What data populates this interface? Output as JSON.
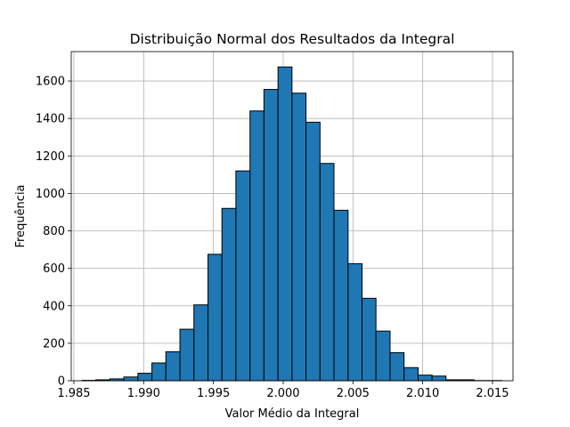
{
  "chart_data": {
    "type": "histogram",
    "title": "Distribuição Normal dos Resultados da Integral",
    "x_label": "Valor Médio da Integral",
    "y_label": "Frequência",
    "bins": [
      1.98557,
      1.98657,
      1.98758,
      1.98858,
      1.98959,
      1.99059,
      1.99159,
      1.9926,
      1.9936,
      1.99461,
      1.99561,
      1.99661,
      1.99762,
      1.99862,
      1.99963,
      2.00063,
      2.00163,
      2.00264,
      2.00364,
      2.00465,
      2.00565,
      2.00665,
      2.00766,
      2.00866,
      2.00967,
      2.01067,
      2.01167,
      2.01268,
      2.01368,
      2.01469,
      2.01569
    ],
    "values": [
      2,
      5,
      10,
      20,
      40,
      95,
      155,
      275,
      405,
      675,
      920,
      1120,
      1440,
      1555,
      1675,
      1535,
      1380,
      1160,
      910,
      625,
      440,
      265,
      150,
      70,
      30,
      25,
      5,
      5,
      1,
      1
    ],
    "color": "#1f77b4",
    "edgecolor": "#000000",
    "xlim": [
      1.98481,
      2.01647
    ],
    "xticks": [
      1.985,
      {
        "value": 1.99,
        "label": "1.990"
      },
      1.995,
      {
        "value": 2,
        "label": "2.000"
      },
      2.005,
      {
        "value": 2.01,
        "label": "2.010"
      },
      2.015
    ],
    "ylim": [
      0,
      1757
    ],
    "yticks": [
      0,
      200,
      400,
      600,
      800,
      1000,
      1200,
      1400,
      1600
    ],
    "grid": true
  }
}
